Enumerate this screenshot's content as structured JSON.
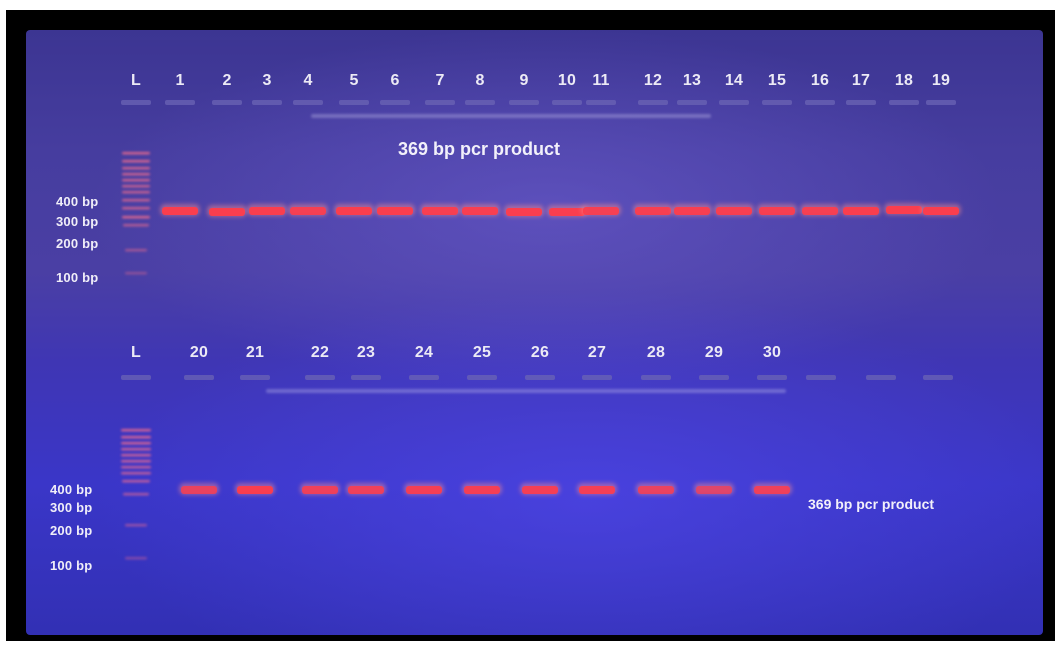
{
  "gel": {
    "top_row": {
      "ladder_label": "L",
      "lane_labels": [
        "1",
        "2",
        "3",
        "4",
        "5",
        "6",
        "7",
        "8",
        "9",
        "10",
        "11",
        "12",
        "13",
        "14",
        "15",
        "16",
        "17",
        "18",
        "19"
      ],
      "marker_labels": [
        "400 bp",
        "300 bp",
        "200 bp",
        "100 bp"
      ],
      "annotation": "369 bp pcr product"
    },
    "bottom_row": {
      "ladder_label": "L",
      "lane_labels": [
        "20",
        "21",
        "22",
        "23",
        "24",
        "25",
        "26",
        "27",
        "28",
        "29",
        "30"
      ],
      "marker_labels": [
        "400 bp",
        "300 bp",
        "200 bp",
        "100 bp"
      ],
      "annotation": "369 bp pcr product"
    },
    "colors": {
      "band": "#ff3c4a",
      "band_glow": "#ff8c8c",
      "ladder": "#ff6f8a",
      "well": "#6b64b4"
    }
  }
}
